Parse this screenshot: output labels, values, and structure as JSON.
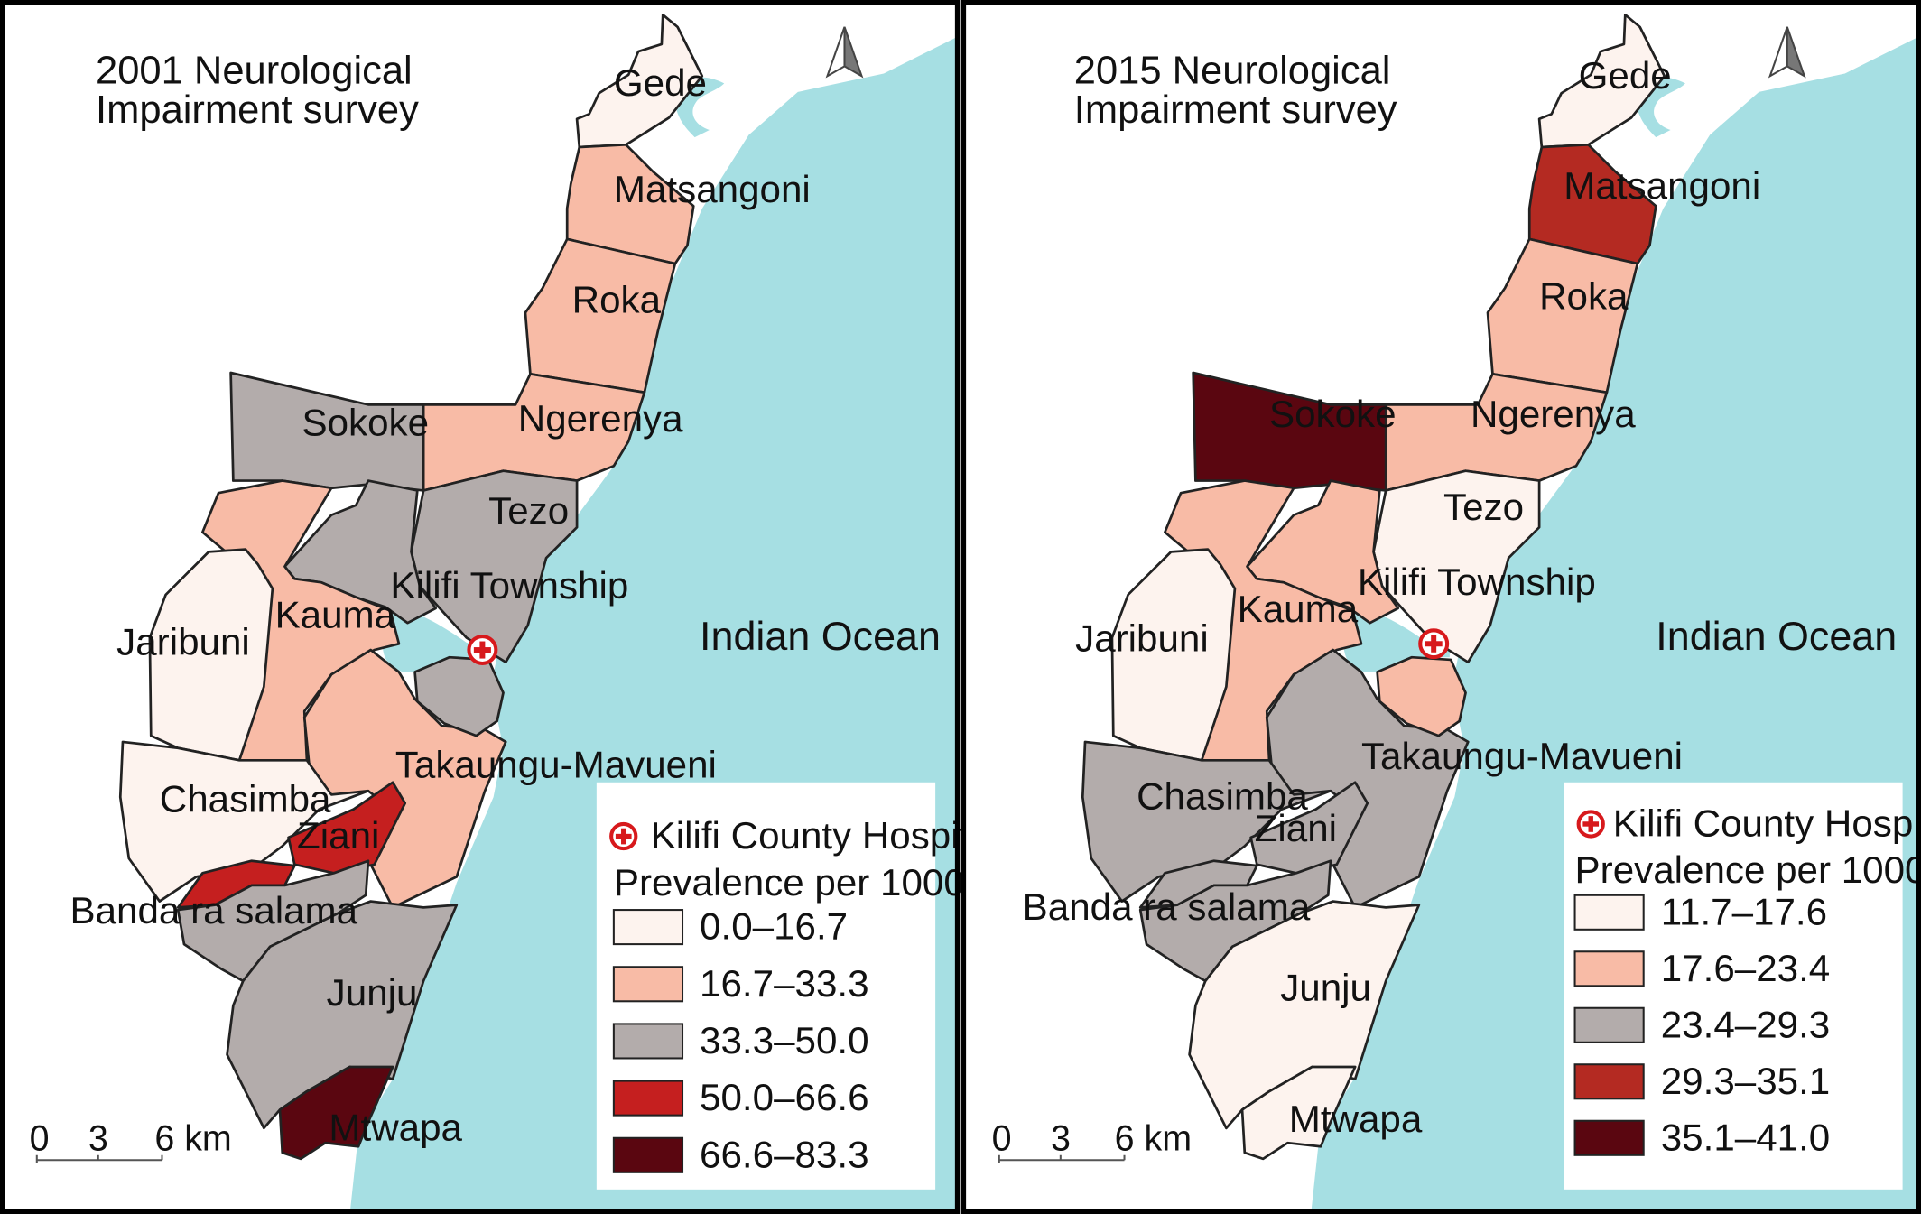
{
  "maps": [
    {
      "title_line1": "2001 Neurological",
      "title_line2": "Impairment survey",
      "ocean_label": "Indian Ocean",
      "hospital_label": "Kilifi County Hospital",
      "legend_title": "Prevalence per 1000",
      "classes": [
        {
          "range": "0.0–16.7",
          "color": "#fdf3ee"
        },
        {
          "range": "16.7–33.3",
          "color": "#f8bba6"
        },
        {
          "range": "33.3–50.0",
          "color": "#b3acab"
        },
        {
          "range": "50.0–66.6",
          "color": "#c51f1f"
        },
        {
          "range": "66.6–83.3",
          "color": "#5a0610"
        }
      ],
      "regions": {
        "gede": {
          "label": "Gede",
          "class": 0
        },
        "matsangoni": {
          "label": "Matsangoni",
          "class": 1
        },
        "roka": {
          "label": "Roka",
          "class": 1
        },
        "ngerenya": {
          "label": "Ngerenya",
          "class": 1
        },
        "sokoke": {
          "label": "Sokoke",
          "class": 2
        },
        "tezo": {
          "label": "Tezo",
          "class": 2
        },
        "kilifi_township": {
          "label": "Kilifi Township",
          "class": 2
        },
        "kauma": {
          "label": "Kauma",
          "class": 1
        },
        "jaribuni": {
          "label": "Jaribuni",
          "class": 0
        },
        "chasimba": {
          "label": "Chasimba",
          "class": 0
        },
        "ziani": {
          "label": "Ziani",
          "class": 3
        },
        "banda_ra_salama": {
          "label": "Banda ra salama",
          "class": 3
        },
        "takaungu_mavueni": {
          "label": "Takaungu-Mavueni",
          "class": 1
        },
        "junju": {
          "label": "Junju",
          "class": 2
        },
        "mtwapa": {
          "label": "Mtwapa",
          "class": 4
        }
      }
    },
    {
      "title_line1": "2015 Neurological",
      "title_line2": "Impairment survey",
      "ocean_label": "Indian Ocean",
      "hospital_label": "Kilifi County Hospital",
      "legend_title": "Prevalence per 1000",
      "classes": [
        {
          "range": "11.7–17.6",
          "color": "#fdf3ee"
        },
        {
          "range": "17.6–23.4",
          "color": "#f8bba6"
        },
        {
          "range": "23.4–29.3",
          "color": "#b3acab"
        },
        {
          "range": "29.3–35.1",
          "color": "#b42a22"
        },
        {
          "range": "35.1–41.0",
          "color": "#5a0610"
        }
      ],
      "regions": {
        "gede": {
          "label": "Gede",
          "class": 0
        },
        "matsangoni": {
          "label": "Matsangoni",
          "class": 3
        },
        "roka": {
          "label": "Roka",
          "class": 1
        },
        "ngerenya": {
          "label": "Ngerenya",
          "class": 1
        },
        "sokoke": {
          "label": "Sokoke",
          "class": 4
        },
        "tezo": {
          "label": "Tezo",
          "class": 0
        },
        "kilifi_township": {
          "label": "Kilifi Township",
          "class": 1
        },
        "kauma": {
          "label": "Kauma",
          "class": 1
        },
        "jaribuni": {
          "label": "Jaribuni",
          "class": 0
        },
        "chasimba": {
          "label": "Chasimba",
          "class": 2
        },
        "ziani": {
          "label": "Ziani",
          "class": 2
        },
        "banda_ra_salama": {
          "label": "Banda ra salama",
          "class": 2
        },
        "takaungu_mavueni": {
          "label": "Takaungu-Mavueni",
          "class": 2
        },
        "junju": {
          "label": "Junju",
          "class": 0
        },
        "mtwapa": {
          "label": "Mtwapa",
          "class": 0
        }
      }
    }
  ],
  "scalebar": {
    "t0": "0",
    "t1": "3",
    "t2": "6 km"
  },
  "colors": {
    "ocean": "#a6dfe3",
    "land": "#ffffff",
    "frame": "#000000",
    "hospital": "#d7191c"
  },
  "icons": {
    "north_arrow": "north-arrow-icon",
    "hospital": "red-cross-circle-icon"
  }
}
